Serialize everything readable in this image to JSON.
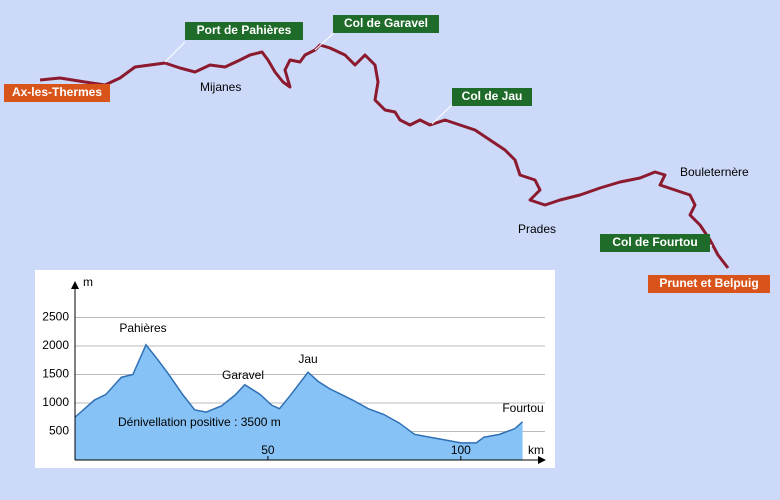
{
  "map": {
    "labels": {
      "start": "Ax-les-Thermes",
      "pass1": "Port de Pahières",
      "pass2": "Col de Garavel",
      "pass3": "Col de Jau",
      "pass4": "Col de Fourtou",
      "end": "Prunet et Belpuig",
      "town1": "Mijanes",
      "town2": "Bouleternère",
      "town3": "Prades"
    }
  },
  "chart_data": {
    "type": "area",
    "y_label": "m",
    "x_label": "km",
    "annotations": [
      "Pahières",
      "Garavel",
      "Jau",
      "Fourtou",
      "Dénivellation positive : 3500 m"
    ],
    "x": [
      0,
      5,
      8,
      12,
      15,
      18.4,
      21,
      24,
      28,
      31,
      34,
      38,
      41.5,
      44,
      48,
      51,
      53,
      56,
      60.4,
      63,
      66,
      69,
      72,
      76,
      80,
      84,
      88,
      92,
      96,
      100,
      104,
      106,
      110,
      114,
      116
    ],
    "values": [
      750,
      1050,
      1150,
      1450,
      1500,
      2020,
      1800,
      1530,
      1140,
      880,
      840,
      950,
      1140,
      1320,
      1150,
      960,
      900,
      1150,
      1540,
      1380,
      1250,
      1150,
      1050,
      900,
      800,
      650,
      450,
      400,
      350,
      300,
      300,
      400,
      450,
      550,
      670
    ],
    "color": "#86c2f5",
    "xlim": [
      0,
      120
    ],
    "ylim": [
      0,
      3000
    ],
    "xticks": [
      50,
      100
    ],
    "yticks": [
      500,
      1000,
      1500,
      2000,
      2500
    ],
    "grid": true
  }
}
